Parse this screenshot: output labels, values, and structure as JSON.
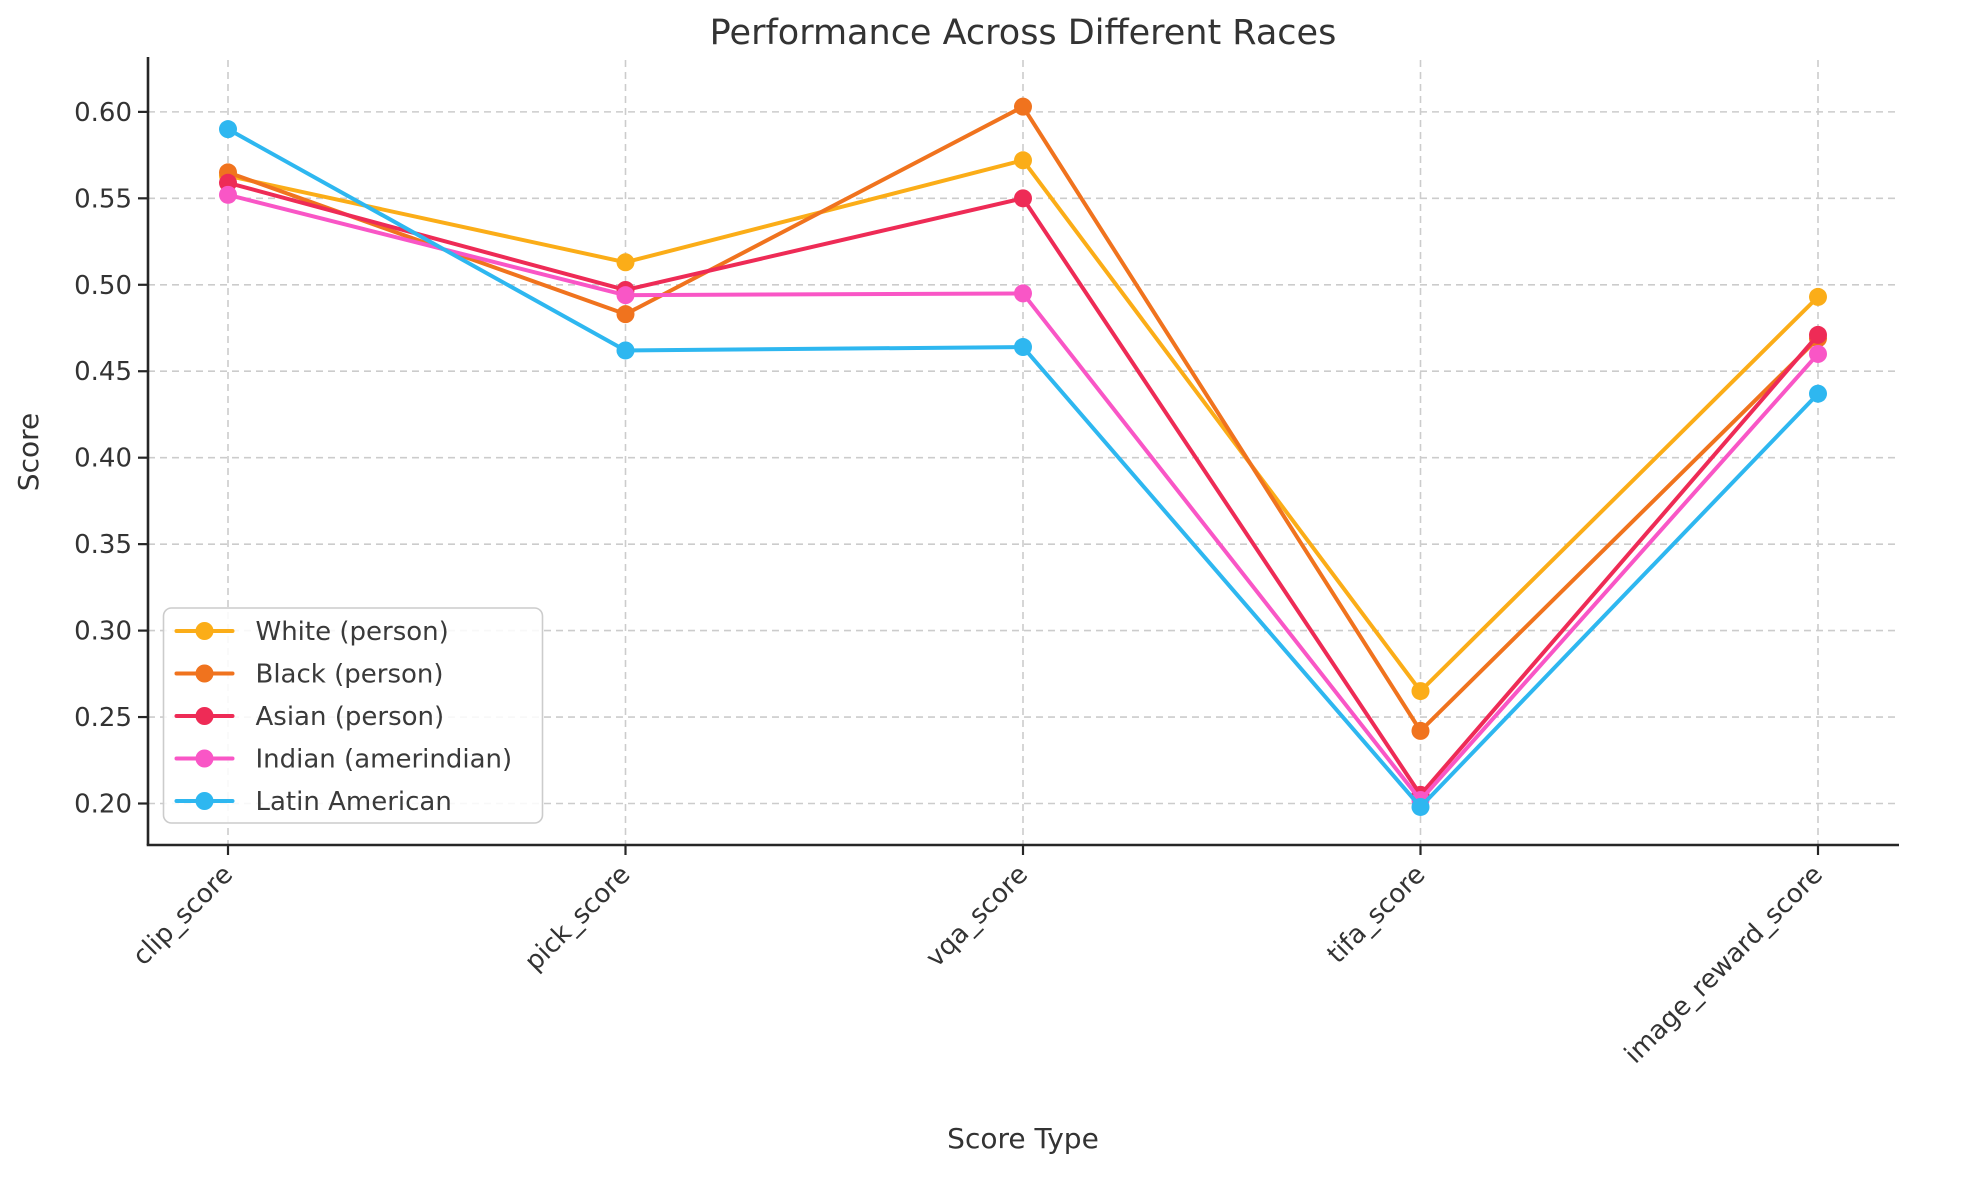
{
  "figure": {
    "background_color": "#ffffff",
    "grid_color": "#cccccc",
    "axis_color": "#262626",
    "text_color": "#333333"
  },
  "chart_data": {
    "type": "line",
    "title": "Performance Across Different Races",
    "xlabel": "Score Type",
    "ylabel": "Score",
    "categories": [
      "clip_score",
      "pick_score",
      "vqa_score",
      "tifa_score",
      "image_reward_score"
    ],
    "series": [
      {
        "name": "White (person)",
        "color": "#FBAD18",
        "values": [
          0.563,
          0.513,
          0.572,
          0.265,
          0.493
        ]
      },
      {
        "name": "Black (person)",
        "color": "#F0731E",
        "values": [
          0.565,
          0.483,
          0.603,
          0.242,
          0.469
        ]
      },
      {
        "name": "Asian (person)",
        "color": "#EE2B56",
        "values": [
          0.559,
          0.497,
          0.55,
          0.205,
          0.471
        ]
      },
      {
        "name": "Indian (amerindian)",
        "color": "#F956C6",
        "values": [
          0.552,
          0.494,
          0.495,
          0.202,
          0.46
        ]
      },
      {
        "name": "Latin American",
        "color": "#2EB7F0",
        "values": [
          0.59,
          0.462,
          0.464,
          0.198,
          0.437
        ]
      }
    ],
    "ylim": [
      0.176,
      0.63
    ],
    "yticks": [
      0.6,
      0.55,
      0.5,
      0.45,
      0.4,
      0.35,
      0.3,
      0.25,
      0.2
    ],
    "ytick_format_decimals": 2,
    "grid": true,
    "grid_dashed": true,
    "legend_position": "lower left",
    "marker": "circle",
    "line_width": 4,
    "marker_radius": 9
  }
}
